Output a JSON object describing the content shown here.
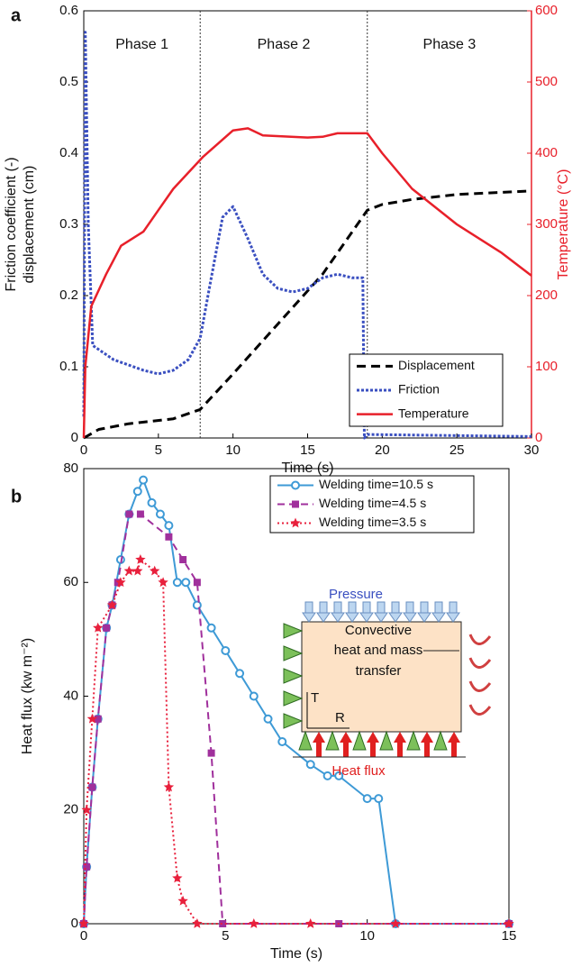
{
  "chart_data": [
    {
      "type": "line",
      "panel_label": "a",
      "xlabel": "Time (s)",
      "ylabel": [
        "Friction coefficient (-)",
        "displacement (cm)"
      ],
      "y2label": "Temperature (°C)",
      "xlim": [
        0,
        30
      ],
      "xticks": [
        0,
        5,
        10,
        15,
        20,
        25,
        30
      ],
      "ylim": [
        0,
        0.6
      ],
      "yticks": [
        0,
        0.1,
        0.2,
        0.3,
        0.4,
        0.5,
        0.6
      ],
      "y2lim": [
        0,
        600
      ],
      "y2ticks": [
        0,
        100,
        200,
        300,
        400,
        500,
        600
      ],
      "phases": [
        "Phase 1",
        "Phase 2",
        "Phase 3"
      ],
      "phase_boundaries": [
        7.8,
        19
      ],
      "legend": "lower right",
      "series": [
        {
          "name": "Displacement",
          "color": "#000000",
          "dash": "10,6",
          "width": 3,
          "x": [
            0,
            1,
            3,
            6,
            7.8,
            10,
            13,
            16,
            19,
            20,
            22,
            25,
            30
          ],
          "values": [
            0,
            0.012,
            0.02,
            0.027,
            0.04,
            0.09,
            0.16,
            0.23,
            0.32,
            0.328,
            0.335,
            0.342,
            0.347
          ]
        },
        {
          "name": "Friction",
          "color": "#3a4fc0",
          "dash": "3,2",
          "width": 3,
          "x": [
            0,
            0.1,
            0.3,
            0.6,
            2,
            4,
            5,
            6,
            7,
            7.8,
            8.5,
            9.3,
            10,
            11,
            12,
            13,
            14,
            15,
            16,
            17,
            18,
            18.7,
            18.8,
            19,
            30
          ],
          "values": [
            0.03,
            0.57,
            0.3,
            0.13,
            0.11,
            0.095,
            0.09,
            0.095,
            0.11,
            0.14,
            0.22,
            0.31,
            0.325,
            0.28,
            0.23,
            0.21,
            0.205,
            0.21,
            0.225,
            0.23,
            0.225,
            0.225,
            0.0,
            0.005,
            0.002
          ]
        },
        {
          "name": "Temperature",
          "color": "#e8202a",
          "dash": "",
          "width": 2.5,
          "axis": "y2",
          "x": [
            0,
            0.1,
            0.5,
            1.5,
            2.5,
            4,
            5,
            6,
            8,
            10,
            11,
            12,
            15,
            16,
            17,
            19,
            20,
            22,
            25,
            28,
            30
          ],
          "values": [
            0,
            100,
            185,
            230,
            270,
            290,
            320,
            350,
            395,
            432,
            435,
            425,
            422,
            423,
            428,
            428,
            400,
            350,
            300,
            260,
            228
          ]
        }
      ]
    },
    {
      "type": "line",
      "panel_label": "b",
      "xlabel": "Time (s)",
      "ylabel": [
        "Heat flux (kw m⁻²)"
      ],
      "xlim": [
        0,
        15
      ],
      "xticks": [
        0,
        5,
        10,
        15
      ],
      "ylim": [
        0,
        80
      ],
      "yticks": [
        0,
        20,
        40,
        60,
        80
      ],
      "legend": "upper right",
      "series": [
        {
          "name": "Welding time=10.5 s",
          "color": "#3e9ad6",
          "dash": "",
          "width": 2,
          "marker": "circle",
          "x": [
            0,
            0.1,
            0.3,
            0.5,
            0.8,
            1,
            1.3,
            1.6,
            1.9,
            2.1,
            2.4,
            2.7,
            3,
            3.3,
            3.6,
            4,
            4.5,
            5,
            5.5,
            6,
            6.5,
            7,
            8,
            8.6,
            9,
            10,
            10.4,
            11,
            15
          ],
          "values": [
            0,
            10,
            24,
            36,
            52,
            56,
            64,
            72,
            76,
            78,
            74,
            72,
            70,
            60,
            60,
            56,
            52,
            48,
            44,
            40,
            36,
            32,
            28,
            26,
            26,
            22,
            22,
            0,
            0
          ]
        },
        {
          "name": "Welding time=4.5 s",
          "color": "#a0309c",
          "dash": "8,5",
          "width": 2,
          "marker": "square",
          "x": [
            0,
            0.1,
            0.3,
            0.5,
            0.8,
            1,
            1.2,
            1.6,
            2,
            3,
            3.5,
            4,
            4.5,
            4.9,
            9,
            15
          ],
          "values": [
            0,
            10,
            24,
            36,
            52,
            56,
            60,
            72,
            72,
            68,
            64,
            60,
            30,
            0,
            0,
            0
          ]
        },
        {
          "name": "Welding time=3.5 s",
          "color": "#e8203c",
          "dash": "2,3",
          "width": 2,
          "marker": "star",
          "x": [
            0,
            0.1,
            0.3,
            0.5,
            1,
            1.3,
            1.6,
            1.9,
            2,
            2.5,
            2.8,
            3,
            3.3,
            3.5,
            4,
            6,
            8,
            11,
            15
          ],
          "values": [
            0,
            20,
            36,
            52,
            56,
            60,
            62,
            62,
            64,
            62,
            60,
            24,
            8,
            4,
            0,
            0,
            0,
            0,
            0
          ]
        }
      ],
      "inset": {
        "labels": [
          "Pressure",
          "Convective",
          "heat and mass",
          "transfer",
          "T",
          "R",
          "Heat flux"
        ]
      }
    }
  ]
}
